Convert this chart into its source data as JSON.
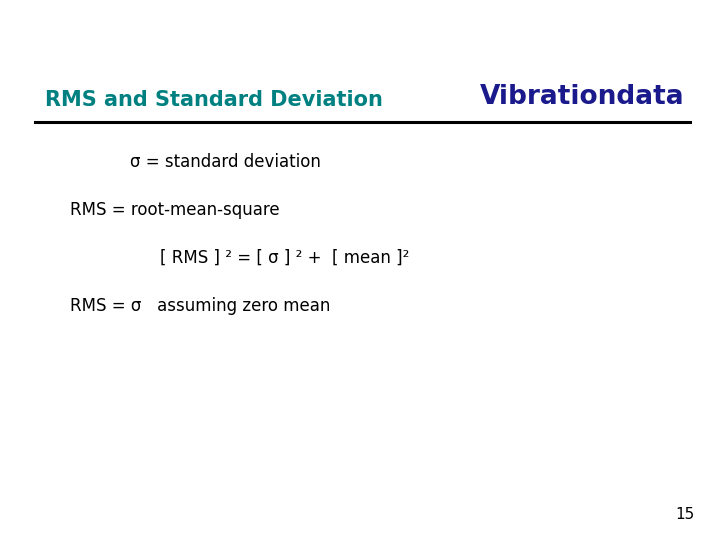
{
  "title": "RMS and Standard Deviation",
  "title_color": "#008080",
  "brand": "Vibrationdata",
  "brand_color": "#1a1a8c",
  "background_color": "#ffffff",
  "line_color": "#000000",
  "text_color": "#000000",
  "body_font_size": 12,
  "line1": "σ = standard deviation",
  "line2": "RMS = root-mean-square",
  "line3": "[ RMS ] ² = [ σ ] ² +  [ mean ]²",
  "line4": "RMS = σ   assuming zero mean",
  "page_number": "15",
  "title_fontsize": 15,
  "brand_fontsize": 19
}
